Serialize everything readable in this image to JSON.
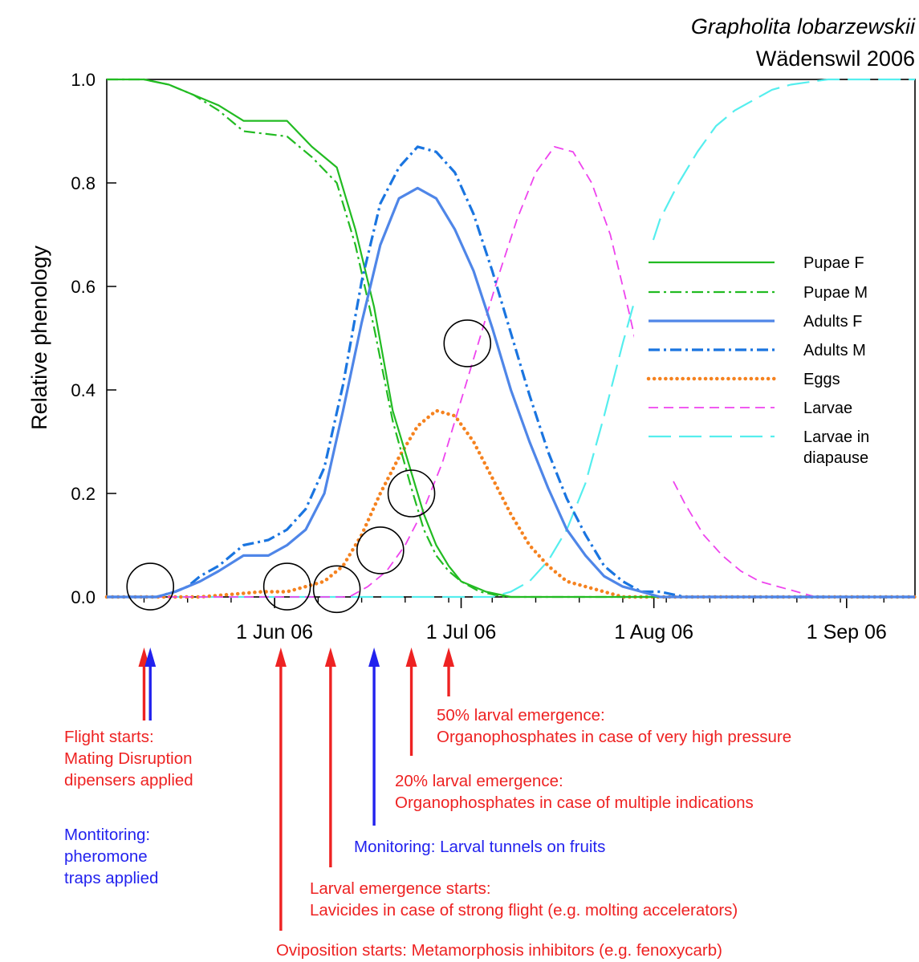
{
  "chart_data": {
    "type": "line",
    "title": "Grapholita lobarzewskii",
    "subtitle": "Wädenswil 2006",
    "ylabel": "Relative phenology",
    "xlabel": "",
    "x_axis": {
      "type": "date",
      "range": [
        "2006-05-05",
        "2006-09-12"
      ],
      "ticks": [
        {
          "date": "2006-06-01",
          "label": "1 Jun 06"
        },
        {
          "date": "2006-07-01",
          "label": "1 Jul 06"
        },
        {
          "date": "2006-08-01",
          "label": "1 Aug 06"
        },
        {
          "date": "2006-09-01",
          "label": "1 Sep 06"
        }
      ]
    },
    "y_axis": {
      "range": [
        0,
        1
      ],
      "ticks": [
        "0.0",
        "0.2",
        "0.4",
        "0.6",
        "0.8",
        "1.0"
      ]
    },
    "grid": false,
    "legend_position": "right",
    "series": [
      {
        "name": "Pupae F",
        "color": "#22bb22",
        "style": "solid",
        "x": [
          "2006-05-05",
          "2006-05-11",
          "2006-05-15",
          "2006-05-19",
          "2006-05-23",
          "2006-05-27",
          "2006-06-03",
          "2006-06-07",
          "2006-06-11",
          "2006-06-14",
          "2006-06-17",
          "2006-06-20",
          "2006-06-23",
          "2006-06-25",
          "2006-06-27",
          "2006-06-29",
          "2006-07-01",
          "2006-07-05",
          "2006-07-09",
          "2006-09-12"
        ],
        "values": [
          1.0,
          1.0,
          0.99,
          0.97,
          0.95,
          0.92,
          0.92,
          0.87,
          0.83,
          0.71,
          0.56,
          0.36,
          0.24,
          0.16,
          0.1,
          0.06,
          0.03,
          0.01,
          0.0,
          0.0
        ]
      },
      {
        "name": "Pupae M",
        "color": "#22bb22",
        "style": "dashdot",
        "x": [
          "2006-05-05",
          "2006-05-11",
          "2006-05-15",
          "2006-05-19",
          "2006-05-23",
          "2006-05-27",
          "2006-06-03",
          "2006-06-07",
          "2006-06-11",
          "2006-06-14",
          "2006-06-17",
          "2006-06-20",
          "2006-06-23",
          "2006-06-25",
          "2006-06-27",
          "2006-06-29",
          "2006-07-01",
          "2006-07-04",
          "2006-07-08",
          "2006-09-12"
        ],
        "values": [
          1.0,
          1.0,
          0.99,
          0.97,
          0.94,
          0.9,
          0.89,
          0.85,
          0.8,
          0.68,
          0.52,
          0.34,
          0.21,
          0.13,
          0.08,
          0.05,
          0.03,
          0.01,
          0.0,
          0.0
        ]
      },
      {
        "name": "Adults F",
        "color": "#4f86e8",
        "style": "solid",
        "x": [
          "2006-05-05",
          "2006-05-09",
          "2006-05-13",
          "2006-05-16",
          "2006-05-18",
          "2006-05-20",
          "2006-05-23",
          "2006-05-27",
          "2006-05-31",
          "2006-06-03",
          "2006-06-06",
          "2006-06-09",
          "2006-06-12",
          "2006-06-15",
          "2006-06-18",
          "2006-06-21",
          "2006-06-24",
          "2006-06-27",
          "2006-06-30",
          "2006-07-03",
          "2006-07-06",
          "2006-07-09",
          "2006-07-12",
          "2006-07-15",
          "2006-07-18",
          "2006-07-21",
          "2006-07-24",
          "2006-07-27",
          "2006-07-30",
          "2006-08-02",
          "2006-09-12"
        ],
        "values": [
          0.0,
          0.0,
          0.0,
          0.01,
          0.02,
          0.03,
          0.05,
          0.08,
          0.08,
          0.1,
          0.13,
          0.2,
          0.36,
          0.53,
          0.68,
          0.77,
          0.79,
          0.77,
          0.71,
          0.63,
          0.52,
          0.4,
          0.3,
          0.21,
          0.13,
          0.08,
          0.04,
          0.02,
          0.01,
          0.0,
          0.0
        ]
      },
      {
        "name": "Adults M",
        "color": "#1a75e0",
        "style": "dashdot",
        "x": [
          "2006-05-05",
          "2006-05-09",
          "2006-05-13",
          "2006-05-16",
          "2006-05-18",
          "2006-05-20",
          "2006-05-23",
          "2006-05-27",
          "2006-05-31",
          "2006-06-03",
          "2006-06-06",
          "2006-06-09",
          "2006-06-12",
          "2006-06-15",
          "2006-06-18",
          "2006-06-21",
          "2006-06-24",
          "2006-06-27",
          "2006-06-30",
          "2006-07-03",
          "2006-07-06",
          "2006-07-09",
          "2006-07-12",
          "2006-07-15",
          "2006-07-18",
          "2006-07-21",
          "2006-07-24",
          "2006-07-27",
          "2006-07-30",
          "2006-08-02",
          "2006-08-06",
          "2006-09-12"
        ],
        "values": [
          0.0,
          0.0,
          0.0,
          0.01,
          0.02,
          0.04,
          0.06,
          0.1,
          0.11,
          0.13,
          0.17,
          0.25,
          0.41,
          0.61,
          0.76,
          0.83,
          0.87,
          0.86,
          0.82,
          0.74,
          0.63,
          0.51,
          0.39,
          0.28,
          0.19,
          0.12,
          0.06,
          0.03,
          0.01,
          0.01,
          0.0,
          0.0
        ]
      },
      {
        "name": "Eggs",
        "color": "#f5821f",
        "style": "dotted",
        "x": [
          "2006-05-05",
          "2006-05-20",
          "2006-05-25",
          "2006-05-30",
          "2006-06-03",
          "2006-06-06",
          "2006-06-09",
          "2006-06-12",
          "2006-06-15",
          "2006-06-18",
          "2006-06-21",
          "2006-06-24",
          "2006-06-27",
          "2006-06-30",
          "2006-07-03",
          "2006-07-06",
          "2006-07-09",
          "2006-07-12",
          "2006-07-15",
          "2006-07-18",
          "2006-07-21",
          "2006-07-24",
          "2006-07-27",
          "2006-07-30",
          "2006-09-12"
        ],
        "values": [
          0.0,
          0.0,
          0.005,
          0.01,
          0.01,
          0.02,
          0.03,
          0.06,
          0.12,
          0.2,
          0.27,
          0.33,
          0.36,
          0.35,
          0.3,
          0.23,
          0.16,
          0.1,
          0.06,
          0.03,
          0.02,
          0.01,
          0.0,
          0.0,
          0.0
        ]
      },
      {
        "name": "Larvae",
        "color": "#ee44ee",
        "style": "dashed",
        "x": [
          "2006-05-05",
          "2006-06-13",
          "2006-06-16",
          "2006-06-19",
          "2006-06-22",
          "2006-06-25",
          "2006-06-28",
          "2006-07-01",
          "2006-07-04",
          "2006-07-07",
          "2006-07-10",
          "2006-07-13",
          "2006-07-16",
          "2006-07-19",
          "2006-07-22",
          "2006-07-25",
          "2006-07-28",
          "2006-07-31",
          "2006-08-03",
          "2006-08-06",
          "2006-08-09",
          "2006-08-12",
          "2006-08-15",
          "2006-08-18",
          "2006-08-21",
          "2006-08-24",
          "2006-08-27",
          "2006-09-12"
        ],
        "values": [
          0.0,
          0.0,
          0.02,
          0.05,
          0.1,
          0.17,
          0.26,
          0.38,
          0.5,
          0.62,
          0.73,
          0.82,
          0.87,
          0.86,
          0.8,
          0.7,
          0.55,
          0.39,
          0.25,
          0.18,
          0.12,
          0.08,
          0.05,
          0.03,
          0.02,
          0.01,
          0.0,
          0.0
        ]
      },
      {
        "name": "Larvae in diapause",
        "color": "#55eeee",
        "style": "longdash",
        "x": [
          "2006-05-05",
          "2006-07-06",
          "2006-07-09",
          "2006-07-12",
          "2006-07-15",
          "2006-07-18",
          "2006-07-21",
          "2006-07-24",
          "2006-07-27",
          "2006-07-30",
          "2006-08-02",
          "2006-08-05",
          "2006-08-08",
          "2006-08-11",
          "2006-08-14",
          "2006-08-17",
          "2006-08-20",
          "2006-08-23",
          "2006-08-26",
          "2006-08-29",
          "2006-09-12"
        ],
        "values": [
          0.0,
          0.0,
          0.01,
          0.03,
          0.07,
          0.13,
          0.22,
          0.35,
          0.49,
          0.62,
          0.73,
          0.8,
          0.86,
          0.91,
          0.94,
          0.96,
          0.98,
          0.99,
          0.995,
          1.0,
          1.0
        ]
      }
    ],
    "annotations": {
      "circles": [
        {
          "x": "2006-05-12",
          "y": 0.02
        },
        {
          "x": "2006-06-03",
          "y": 0.02
        },
        {
          "x": "2006-06-11",
          "y": 0.015
        },
        {
          "x": "2006-06-18",
          "y": 0.09
        },
        {
          "x": "2006-06-23",
          "y": 0.2
        },
        {
          "x": "2006-07-02",
          "y": 0.49
        }
      ],
      "arrows": [
        {
          "x": "2006-05-11",
          "color": "#ee2222",
          "text_id": "a"
        },
        {
          "x": "2006-05-12",
          "color": "#2222ee",
          "text_id": "b"
        },
        {
          "x": "2006-06-02",
          "color": "#ee2222",
          "text_id": "g"
        },
        {
          "x": "2006-06-10",
          "color": "#ee2222",
          "text_id": "f"
        },
        {
          "x": "2006-06-17",
          "color": "#2222ee",
          "text_id": "e"
        },
        {
          "x": "2006-06-23",
          "color": "#ee2222",
          "text_id": "d"
        },
        {
          "x": "2006-06-29",
          "color": "#ee2222",
          "text_id": "c"
        }
      ],
      "notes": [
        {
          "id": "a",
          "color": "#ee2222",
          "lines": [
            "Flight starts:",
            "Mating Disruption",
            "dipensers applied"
          ]
        },
        {
          "id": "b",
          "color": "#2222ee",
          "lines": [
            "Montitoring:",
            "pheromone",
            "traps applied"
          ]
        },
        {
          "id": "c",
          "color": "#ee2222",
          "lines": [
            "50% larval emergence:",
            "Organophosphates in case of very high pressure"
          ]
        },
        {
          "id": "d",
          "color": "#ee2222",
          "lines": [
            "20% larval emergence:",
            "Organophosphates in case of multiple indications"
          ]
        },
        {
          "id": "e",
          "color": "#2222ee",
          "lines": [
            "Monitoring: Larval tunnels on fruits"
          ]
        },
        {
          "id": "f",
          "color": "#ee2222",
          "lines": [
            "Larval emergence starts:",
            "Lavicides in case of strong flight (e.g. molting accelerators)"
          ]
        },
        {
          "id": "g",
          "color": "#ee2222",
          "lines": [
            "Oviposition starts: Metamorphosis inhibitors (e.g. fenoxycarb)"
          ]
        }
      ]
    }
  }
}
